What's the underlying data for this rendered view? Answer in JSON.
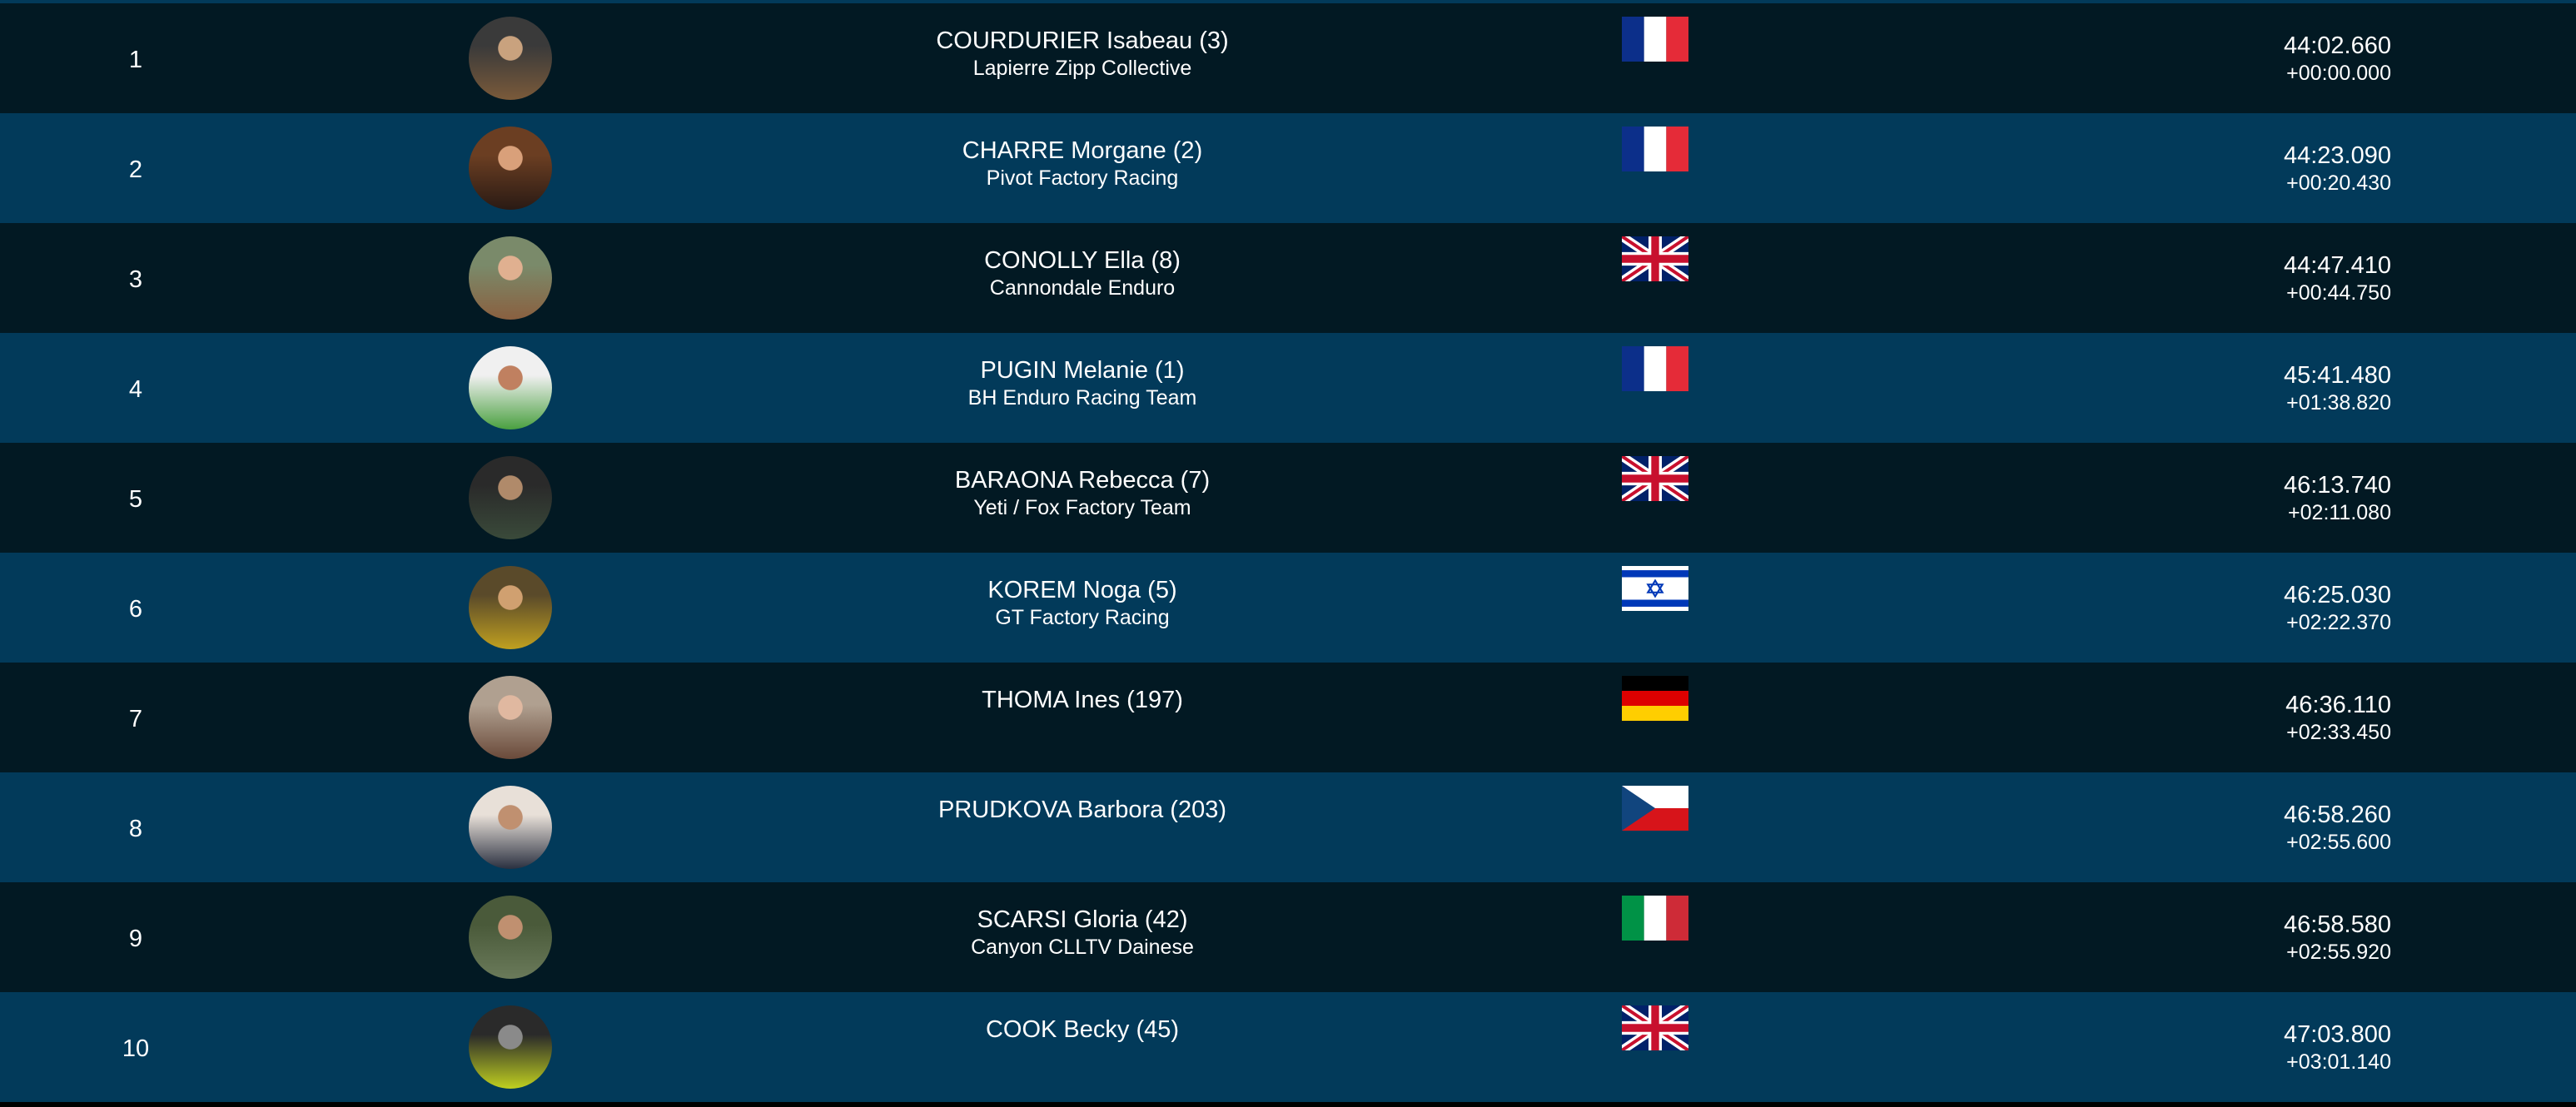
{
  "colors": {
    "row_dark": "#021923",
    "row_blue": "#023a5a",
    "text": "#ffffff"
  },
  "results": [
    {
      "rank": "1",
      "name": "COURDURIER Isabeau (3)",
      "team": "Lapierre Zipp Collective",
      "country": "FRA",
      "time": "44:02.660",
      "gap": "+00:00.000",
      "avatar": [
        "#3a3a3a",
        "#c9a27e",
        "#7a5a3a"
      ]
    },
    {
      "rank": "2",
      "name": "CHARRE Morgane (2)",
      "team": "Pivot Factory Racing",
      "country": "FRA",
      "time": "44:23.090",
      "gap": "+00:20.430",
      "avatar": [
        "#6b3e22",
        "#d9a07a",
        "#2a1a14"
      ]
    },
    {
      "rank": "3",
      "name": "CONOLLY Ella (8)",
      "team": "Cannondale Enduro",
      "country": "GBR",
      "time": "44:47.410",
      "gap": "+00:44.750",
      "avatar": [
        "#7a8a6a",
        "#e0b090",
        "#8a6040"
      ]
    },
    {
      "rank": "4",
      "name": "PUGIN Melanie (1)",
      "team": "BH Enduro Racing Team",
      "country": "FRA",
      "time": "45:41.480",
      "gap": "+01:38.820",
      "avatar": [
        "#f0f0f0",
        "#c08060",
        "#4aa040"
      ]
    },
    {
      "rank": "5",
      "name": "BARAONA Rebecca (7)",
      "team": "Yeti / Fox Factory Team",
      "country": "GBR",
      "time": "46:13.740",
      "gap": "+02:11.080",
      "avatar": [
        "#2a2a2a",
        "#b08a6a",
        "#3a4a3a"
      ]
    },
    {
      "rank": "6",
      "name": "KOREM Noga (5)",
      "team": "GT Factory Racing",
      "country": "ISR",
      "time": "46:25.030",
      "gap": "+02:22.370",
      "avatar": [
        "#5a4a2a",
        "#d0a070",
        "#c0a020"
      ]
    },
    {
      "rank": "7",
      "name": "THOMA Ines (197)",
      "team": "",
      "country": "GER",
      "time": "46:36.110",
      "gap": "+02:33.450",
      "avatar": [
        "#b0a090",
        "#e0b8a0",
        "#6a4a3a"
      ]
    },
    {
      "rank": "8",
      "name": "PRUDKOVA Barbora (203)",
      "team": "",
      "country": "CZE",
      "time": "46:58.260",
      "gap": "+02:55.600",
      "avatar": [
        "#e8e0d8",
        "#c09070",
        "#2a3040"
      ]
    },
    {
      "rank": "9",
      "name": "SCARSI Gloria (42)",
      "team": "Canyon CLLTV Dainese",
      "country": "ITA",
      "time": "46:58.580",
      "gap": "+02:55.920",
      "avatar": [
        "#4a5a3a",
        "#c09070",
        "#6a7a5a"
      ]
    },
    {
      "rank": "10",
      "name": "COOK Becky (45)",
      "team": "",
      "country": "GBR",
      "time": "47:03.800",
      "gap": "+03:01.140",
      "avatar": [
        "#2a2a2a",
        "#8a8a8a",
        "#c0d020"
      ]
    }
  ]
}
